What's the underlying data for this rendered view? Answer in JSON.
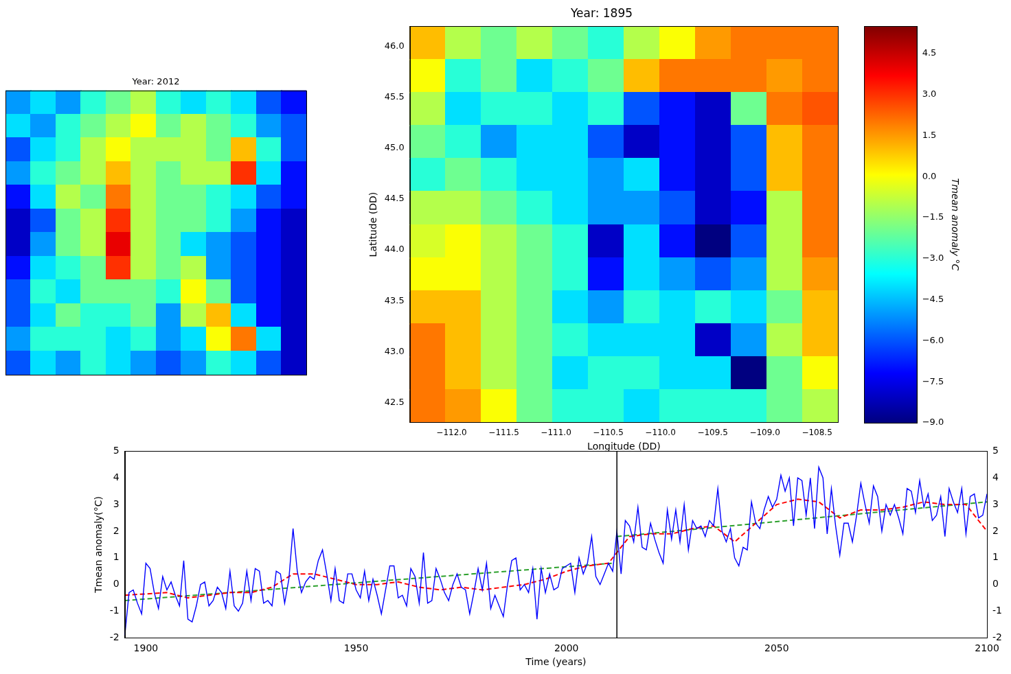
{
  "chart_data": [
    {
      "type": "heatmap",
      "title": "Year: 2012",
      "tick_labels": false,
      "color_range": [
        -9,
        5.5
      ],
      "cells": [
        [
          -5,
          -4,
          -5,
          -3,
          -2,
          -1,
          -3,
          -4,
          -3,
          -4,
          -6,
          -7
        ],
        [
          -4,
          -5,
          -3,
          -2,
          -1,
          0,
          -2,
          -1,
          -2,
          -3,
          -5,
          -6
        ],
        [
          -6,
          -4,
          -3,
          -1,
          0,
          -1,
          -1,
          -1,
          -2,
          1,
          -3,
          -6
        ],
        [
          -5,
          -3,
          -2,
          -1,
          1,
          -1,
          -2,
          -1,
          -1,
          3,
          -4,
          -7
        ],
        [
          -7,
          -4,
          -1,
          -2,
          2,
          -1,
          -2,
          -2,
          -3,
          -4,
          -6,
          -7
        ],
        [
          -8,
          -6,
          -2,
          -1,
          3,
          -1,
          -2,
          -2,
          -3,
          -5,
          -7,
          -8
        ],
        [
          -8,
          -5,
          -2,
          -1,
          4,
          -1,
          -2,
          -4,
          -5,
          -6,
          -7,
          -8
        ],
        [
          -7,
          -4,
          -3,
          -2,
          3,
          -1,
          -2,
          -1,
          -5,
          -6,
          -7,
          -8
        ],
        [
          -6,
          -3,
          -4,
          -2,
          -2,
          -2,
          -3,
          0,
          -2,
          -6,
          -7,
          -8
        ],
        [
          -6,
          -4,
          -2,
          -3,
          -3,
          -2,
          -5,
          -1,
          1,
          -4,
          -7,
          -8
        ],
        [
          -5,
          -3,
          -3,
          -3,
          -4,
          -3,
          -5,
          -4,
          0,
          2,
          -4,
          -8
        ],
        [
          -6,
          -4,
          -5,
          -3,
          -4,
          -5,
          -6,
          -5,
          -3,
          -4,
          -6,
          -8
        ]
      ]
    },
    {
      "type": "heatmap",
      "title": "Year: 1895",
      "x_label": "Longitude (DD)",
      "y_label": "Latitude (DD)",
      "xlim": [
        -112.4,
        -108.3
      ],
      "ylim": [
        42.3,
        46.2
      ],
      "xticks": [
        {
          "value": -112,
          "label": "−112.0"
        },
        {
          "value": -111.5,
          "label": "−111.5"
        },
        {
          "value": -111,
          "label": "−111.0"
        },
        {
          "value": -110.5,
          "label": "−110.5"
        },
        {
          "value": -110,
          "label": "−110.0"
        },
        {
          "value": -109.5,
          "label": "−109.5"
        },
        {
          "value": -109,
          "label": "−109.0"
        },
        {
          "value": -108.5,
          "label": "−108.5"
        }
      ],
      "yticks": [
        42.5,
        {
          "value": 43,
          "label": "43.0"
        },
        43.5,
        {
          "value": 44,
          "label": "44.0"
        },
        44.5,
        {
          "value": 45,
          "label": "45.0"
        },
        45.5,
        {
          "value": 46,
          "label": "46.0"
        }
      ],
      "cells": [
        [
          1,
          -1,
          -2,
          -1,
          -2,
          -3,
          -1,
          0,
          1.5,
          2,
          2,
          2
        ],
        [
          0,
          -3,
          -2,
          -4,
          -3,
          -2,
          1,
          2,
          2,
          2,
          1.5,
          2
        ],
        [
          -1,
          -4,
          -3,
          -3,
          -4,
          -3,
          -6,
          -7,
          -8,
          -2,
          2,
          2.5
        ],
        [
          -2,
          -3,
          -5,
          -4,
          -4,
          -6,
          -8,
          -7,
          -8,
          -6,
          1,
          2
        ],
        [
          -3,
          -2,
          -3,
          -4,
          -4,
          -5,
          -4,
          -7,
          -8,
          -6,
          1,
          2
        ],
        [
          -1,
          -1,
          -2,
          -3,
          -4,
          -5,
          -5,
          -6,
          -8,
          -7,
          -1,
          2
        ],
        [
          -0.5,
          0,
          -1,
          -2,
          -3,
          -8,
          -4,
          -7,
          -9,
          -6,
          -1,
          2
        ],
        [
          0,
          0,
          -1,
          -2,
          -3,
          -7,
          -4,
          -5,
          -6,
          -5,
          -1,
          1.5
        ],
        [
          1,
          1,
          -1,
          -2,
          -4,
          -5,
          -3,
          -4,
          -3,
          -4,
          -2,
          1
        ],
        [
          2,
          1,
          -1,
          -2,
          -3,
          -4,
          -4,
          -4,
          -8,
          -5,
          -1,
          1
        ],
        [
          2,
          1,
          -1,
          -2,
          -4,
          -3,
          -3,
          -4,
          -4,
          -9,
          -2,
          0
        ],
        [
          2,
          1.5,
          0,
          -2,
          -3,
          -3,
          -4,
          -3,
          -3,
          -3,
          -2,
          -1
        ]
      ],
      "colorbar": {
        "label": "Tmean anomaly °C",
        "range": [
          -9,
          5.5
        ],
        "ticks": [
          4.5,
          {
            "value": 3,
            "label": "3.0"
          },
          1.5,
          {
            "value": 0,
            "label": "0.0"
          },
          {
            "value": -1.5,
            "label": "−1.5"
          },
          {
            "value": -3,
            "label": "−3.0"
          },
          {
            "value": -4.5,
            "label": "−4.5"
          },
          {
            "value": -6,
            "label": "−6.0"
          },
          {
            "value": -7.5,
            "label": "−7.5"
          },
          {
            "value": -9,
            "label": "−9.0"
          }
        ]
      }
    },
    {
      "type": "line",
      "x_label": "Time (years)",
      "y_label": "Tmean anomaly(°C)",
      "xlim": [
        1895,
        2100
      ],
      "xticks": [
        1900,
        1950,
        2000,
        2050,
        2100
      ],
      "ylim": [
        -2,
        5
      ],
      "yticks": [
        -2,
        -1,
        0,
        1,
        2,
        3,
        4,
        5
      ],
      "y2lim": [
        -2,
        5
      ],
      "y2ticks": [
        -2,
        -1,
        0,
        1,
        2,
        3,
        4,
        5
      ],
      "grid": false,
      "vertical_line_x": 2012,
      "series": [
        {
          "color": "#0000ff",
          "line_style": "solid",
          "x": [
            1895,
            1896,
            1897,
            1898,
            1899,
            1900,
            1901,
            1902,
            1903,
            1904,
            1905,
            1906,
            1907,
            1908,
            1909,
            1910,
            1911,
            1912,
            1913,
            1914,
            1915,
            1916,
            1917,
            1918,
            1919,
            1920,
            1921,
            1922,
            1923,
            1924,
            1925,
            1926,
            1927,
            1928,
            1929,
            1930,
            1931,
            1932,
            1933,
            1934,
            1935,
            1936,
            1937,
            1938,
            1939,
            1940,
            1941,
            1942,
            1943,
            1944,
            1945,
            1946,
            1947,
            1948,
            1949,
            1950,
            1951,
            1952,
            1953,
            1954,
            1955,
            1956,
            1957,
            1958,
            1959,
            1960,
            1961,
            1962,
            1963,
            1964,
            1965,
            1966,
            1967,
            1968,
            1969,
            1970,
            1971,
            1972,
            1973,
            1974,
            1975,
            1976,
            1977,
            1978,
            1979,
            1980,
            1981,
            1982,
            1983,
            1984,
            1985,
            1986,
            1987,
            1988,
            1989,
            1990,
            1991,
            1992,
            1993,
            1994,
            1995,
            1996,
            1997,
            1998,
            1999,
            2000,
            2001,
            2002,
            2003,
            2004,
            2005,
            2006,
            2007,
            2008,
            2009,
            2010,
            2011,
            2012,
            2013,
            2014,
            2015,
            2016,
            2017,
            2018,
            2019,
            2020,
            2021,
            2022,
            2023,
            2024,
            2025,
            2026,
            2027,
            2028,
            2029,
            2030,
            2031,
            2032,
            2033,
            2034,
            2035,
            2036,
            2037,
            2038,
            2039,
            2040,
            2041,
            2042,
            2043,
            2044,
            2045,
            2046,
            2047,
            2048,
            2049,
            2050,
            2051,
            2052,
            2053,
            2054,
            2055,
            2056,
            2057,
            2058,
            2059,
            2060,
            2061,
            2062,
            2063,
            2064,
            2065,
            2066,
            2067,
            2068,
            2069,
            2070,
            2071,
            2072,
            2073,
            2074,
            2075,
            2076,
            2077,
            2078,
            2079,
            2080,
            2081,
            2082,
            2083,
            2084,
            2085,
            2086,
            2087,
            2088,
            2089,
            2090,
            2091,
            2092,
            2093,
            2094,
            2095,
            2096,
            2097,
            2098,
            2099,
            2100
          ],
          "values": [
            -1.9,
            -0.3,
            -0.2,
            -0.7,
            -1.1,
            0.8,
            0.6,
            -0.3,
            -0.9,
            0.3,
            -0.2,
            0.1,
            -0.4,
            -0.8,
            0.9,
            -1.3,
            -1.4,
            -0.8,
            0,
            0.1,
            -0.8,
            -0.6,
            -0.1,
            -0.3,
            -0.9,
            0.5,
            -0.8,
            -1.0,
            -0.7,
            0.5,
            -0.6,
            0.6,
            0.5,
            -0.7,
            -0.6,
            -0.8,
            0.5,
            0.4,
            -0.7,
            0.2,
            2.1,
            0.5,
            -0.3,
            0.1,
            0.3,
            0.2,
            0.9,
            1.3,
            0.4,
            -0.6,
            0.6,
            -0.6,
            -0.7,
            0.4,
            0.4,
            -0.2,
            -0.5,
            0.5,
            -0.6,
            0.2,
            -0.4,
            -1.1,
            -0.2,
            0.7,
            0.7,
            -0.5,
            -0.4,
            -0.8,
            0.6,
            0.3,
            -0.7,
            1.2,
            -0.7,
            -0.6,
            0.6,
            0.2,
            -0.3,
            -0.6,
            0,
            0.4,
            -0.1,
            -0.2,
            -1.1,
            -0.3,
            0.6,
            -0.2,
            0.8,
            -0.9,
            -0.4,
            -0.8,
            -1.2,
            0,
            0.9,
            1.0,
            -0.2,
            0,
            -0.3,
            0.6,
            -1.3,
            0.6,
            -0.3,
            0.4,
            -0.2,
            -0.1,
            0.6,
            0.7,
            0.8,
            -0.3,
            1.0,
            0.4,
            0.8,
            1.8,
            0.3,
            0,
            0.4,
            0.8,
            0.5,
            2.0,
            0.4,
            2.4,
            2.2,
            1.6,
            2.9,
            1.4,
            1.3,
            2.3,
            1.7,
            1.2,
            0.8,
            2.8,
            1.7,
            2.8,
            1.6,
            3.0,
            1.3,
            2.4,
            2.1,
            2.2,
            1.8,
            2.4,
            2.2,
            3.6,
            2.0,
            1.6,
            2.1,
            1.0,
            0.7,
            1.4,
            1.3,
            3.1,
            2.3,
            2.1,
            2.8,
            3.3,
            2.9,
            3.2,
            4.1,
            3.5,
            4.0,
            2.2,
            4.0,
            3.9,
            2.6,
            4.0,
            2.1,
            4.4,
            4.0,
            1.9,
            3.6,
            2.2,
            1.1,
            2.3,
            2.3,
            1.6,
            2.6,
            3.8,
            3.0,
            2.3,
            3.7,
            3.3,
            2.0,
            3.0,
            2.6,
            3.0,
            2.5,
            1.9,
            3.6,
            3.5,
            2.7,
            3.9,
            2.9,
            3.4,
            2.4,
            2.6,
            3.3,
            1.8,
            3.6,
            3.1,
            2.7,
            3.6,
            1.9,
            3.3,
            3.4,
            2.5,
            2.6,
            3.4
          ]
        },
        {
          "color": "#ff0000",
          "line_style": "dashed",
          "x": [
            1895,
            1900,
            1905,
            1910,
            1915,
            1920,
            1925,
            1930,
            1935,
            1940,
            1945,
            1950,
            1955,
            1960,
            1965,
            1970,
            1975,
            1980,
            1985,
            1990,
            1995,
            2000,
            2005,
            2010,
            2015,
            2020,
            2025,
            2030,
            2035,
            2040,
            2045,
            2050,
            2055,
            2060,
            2065,
            2070,
            2075,
            2080,
            2085,
            2090,
            2095,
            2100
          ],
          "values": [
            -0.4,
            -0.35,
            -0.3,
            -0.5,
            -0.4,
            -0.3,
            -0.3,
            -0.1,
            0.4,
            0.4,
            0.2,
            0,
            0,
            0.1,
            -0.1,
            -0.2,
            -0.1,
            -0.2,
            -0.1,
            0,
            0.2,
            0.5,
            0.7,
            0.8,
            1.8,
            1.9,
            1.9,
            2.1,
            2.2,
            1.6,
            2.3,
            3.0,
            3.2,
            3.1,
            2.5,
            2.8,
            2.8,
            2.9,
            3.1,
            3.0,
            3.0,
            2.0
          ]
        },
        {
          "color": "#2ca02c",
          "line_style": "dashed",
          "x": [
            1895,
            2011
          ],
          "values": [
            -0.6,
            0.8
          ]
        },
        {
          "color": "#2ca02c",
          "line_style": "dashed",
          "x": [
            2012,
            2100
          ],
          "values": [
            1.8,
            3.1
          ]
        }
      ]
    }
  ]
}
